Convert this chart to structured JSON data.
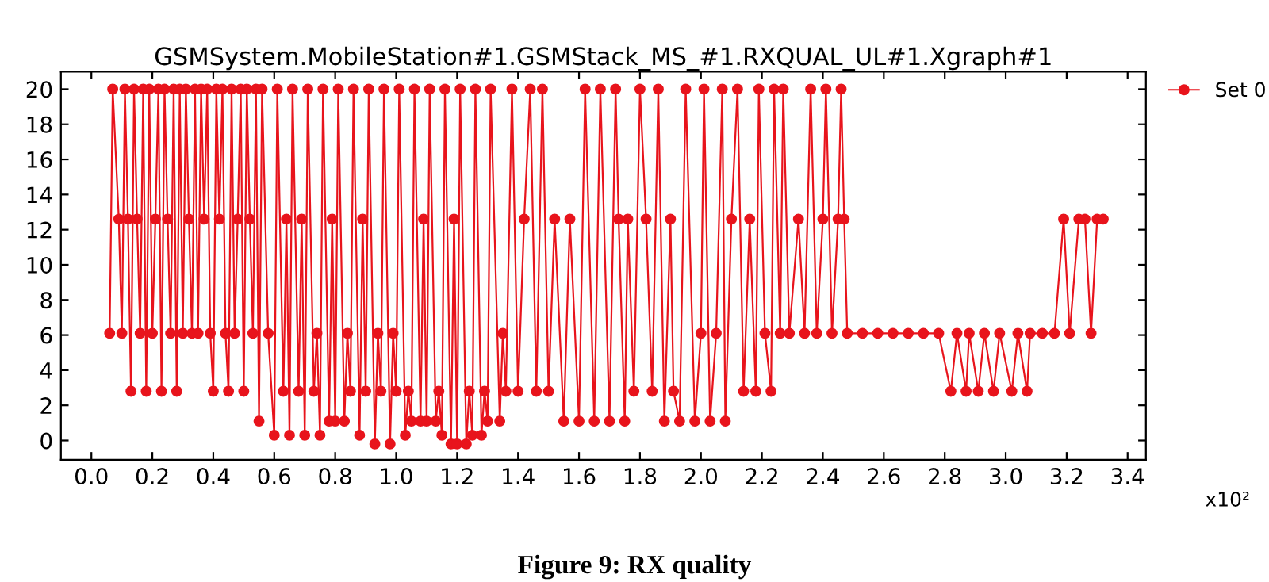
{
  "chart_data": {
    "type": "line",
    "title": "GSMSystem.MobileStation#1.GSMStack_MS_#1.RXQUAL_UL#1.Xgraph#1",
    "annotations": [
      "x10²",
      "Figure 9: RX quality"
    ],
    "series": [
      {
        "name": "Set 0",
        "color": "#e8141c",
        "x": [
          0.06,
          0.07,
          0.09,
          0.1,
          0.11,
          0.12,
          0.13,
          0.14,
          0.15,
          0.16,
          0.17,
          0.18,
          0.19,
          0.2,
          0.21,
          0.22,
          0.23,
          0.24,
          0.25,
          0.26,
          0.27,
          0.28,
          0.29,
          0.3,
          0.31,
          0.32,
          0.33,
          0.34,
          0.35,
          0.36,
          0.37,
          0.38,
          0.39,
          0.4,
          0.41,
          0.42,
          0.43,
          0.44,
          0.45,
          0.46,
          0.47,
          0.48,
          0.49,
          0.5,
          0.51,
          0.52,
          0.53,
          0.54,
          0.55,
          0.56,
          0.58,
          0.6,
          0.61,
          0.63,
          0.64,
          0.65,
          0.66,
          0.68,
          0.69,
          0.7,
          0.71,
          0.73,
          0.74,
          0.75,
          0.76,
          0.78,
          0.79,
          0.8,
          0.81,
          0.83,
          0.84,
          0.85,
          0.86,
          0.88,
          0.89,
          0.9,
          0.91,
          0.93,
          0.94,
          0.95,
          0.96,
          0.98,
          0.99,
          1.0,
          1.01,
          1.03,
          1.04,
          1.05,
          1.06,
          1.08,
          1.09,
          1.1,
          1.11,
          1.13,
          1.14,
          1.15,
          1.16,
          1.18,
          1.19,
          1.2,
          1.21,
          1.23,
          1.24,
          1.25,
          1.26,
          1.28,
          1.29,
          1.3,
          1.31,
          1.34,
          1.35,
          1.36,
          1.38,
          1.4,
          1.42,
          1.44,
          1.46,
          1.48,
          1.5,
          1.52,
          1.55,
          1.57,
          1.6,
          1.62,
          1.65,
          1.67,
          1.7,
          1.72,
          1.73,
          1.75,
          1.76,
          1.78,
          1.8,
          1.82,
          1.84,
          1.86,
          1.88,
          1.9,
          1.91,
          1.93,
          1.95,
          1.98,
          2.0,
          2.01,
          2.03,
          2.05,
          2.07,
          2.08,
          2.1,
          2.12,
          2.14,
          2.16,
          2.18,
          2.19,
          2.21,
          2.23,
          2.24,
          2.26,
          2.27,
          2.29,
          2.32,
          2.34,
          2.36,
          2.38,
          2.4,
          2.41,
          2.43,
          2.45,
          2.46,
          2.47,
          2.48,
          2.53,
          2.58,
          2.63,
          2.68,
          2.73,
          2.78,
          2.82,
          2.84,
          2.87,
          2.88,
          2.91,
          2.93,
          2.96,
          2.98,
          3.02,
          3.04,
          3.07,
          3.08,
          3.12,
          3.16,
          3.19,
          3.21,
          3.24,
          3.26,
          3.28,
          3.3,
          3.32
        ],
        "values": [
          6.1,
          20,
          12.6,
          6.1,
          20,
          12.6,
          2.8,
          20,
          12.6,
          6.1,
          20,
          2.8,
          20,
          6.1,
          12.6,
          20,
          2.8,
          20,
          12.6,
          6.1,
          20,
          2.8,
          20,
          6.1,
          20,
          12.6,
          6.1,
          20,
          6.1,
          20,
          12.6,
          20,
          6.1,
          2.8,
          20,
          12.6,
          20,
          6.1,
          2.8,
          20,
          6.1,
          12.6,
          20,
          2.8,
          20,
          12.6,
          6.1,
          20,
          1.1,
          20,
          6.1,
          0.3,
          20,
          2.8,
          12.6,
          0.3,
          20,
          2.8,
          12.6,
          0.3,
          20,
          2.8,
          6.1,
          0.3,
          20,
          1.1,
          12.6,
          1.1,
          20,
          1.1,
          6.1,
          2.8,
          20,
          0.3,
          12.6,
          2.8,
          20,
          -0.2,
          6.1,
          2.8,
          20,
          -0.2,
          6.1,
          2.8,
          20,
          0.3,
          2.8,
          1.1,
          20,
          1.1,
          12.6,
          1.1,
          20,
          1.1,
          2.8,
          0.3,
          20,
          -0.2,
          12.6,
          -0.2,
          20,
          -0.2,
          2.8,
          0.3,
          20,
          0.3,
          2.8,
          1.1,
          20,
          1.1,
          6.1,
          2.8,
          20,
          2.8,
          12.6,
          20,
          2.8,
          20,
          2.8,
          12.6,
          1.1,
          12.6,
          1.1,
          20,
          1.1,
          20,
          1.1,
          20,
          12.6,
          1.1,
          12.6,
          2.8,
          20,
          12.6,
          2.8,
          20,
          1.1,
          12.6,
          2.8,
          1.1,
          20,
          1.1,
          6.1,
          20,
          1.1,
          6.1,
          20,
          1.1,
          12.6,
          20,
          2.8,
          12.6,
          2.8,
          20,
          6.1,
          2.8,
          20,
          6.1,
          20,
          6.1,
          12.6,
          6.1,
          20,
          6.1,
          12.6,
          20,
          6.1,
          12.6,
          20,
          12.6,
          6.1,
          6.1,
          6.1,
          6.1,
          6.1,
          6.1,
          6.1,
          2.8,
          6.1,
          2.8,
          6.1,
          2.8,
          6.1,
          2.8,
          6.1,
          2.8,
          6.1,
          2.8,
          6.1,
          6.1,
          6.1,
          12.6,
          6.1,
          12.6,
          12.6,
          6.1,
          12.6,
          12.6
        ]
      }
    ],
    "xlim": [
      -0.1,
      3.46
    ],
    "xticks": [
      {
        "value": 0.0,
        "label": "0.0"
      },
      {
        "value": 0.2,
        "label": "0.2"
      },
      {
        "value": 0.4,
        "label": "0.4"
      },
      {
        "value": 0.6,
        "label": "0.6"
      },
      {
        "value": 0.8,
        "label": "0.8"
      },
      {
        "value": 1.0,
        "label": "1.0"
      },
      {
        "value": 1.2,
        "label": "1.2"
      },
      {
        "value": 1.4,
        "label": "1.4"
      },
      {
        "value": 1.6,
        "label": "1.6"
      },
      {
        "value": 1.8,
        "label": "1.8"
      },
      {
        "value": 2.0,
        "label": "2.0"
      },
      {
        "value": 2.2,
        "label": "2.2"
      },
      {
        "value": 2.4,
        "label": "2.4"
      },
      {
        "value": 2.6,
        "label": "2.6"
      },
      {
        "value": 2.8,
        "label": "2.8"
      },
      {
        "value": 3.0,
        "label": "3.0"
      },
      {
        "value": 3.2,
        "label": "3.2"
      },
      {
        "value": 3.4,
        "label": "3.4"
      }
    ],
    "ylim": [
      -1.1,
      21
    ],
    "yticks": [
      0,
      2,
      4,
      6,
      8,
      10,
      12,
      14,
      16,
      18,
      20
    ],
    "marker": "circle",
    "line_style": "solid",
    "grid": false,
    "legend": "top right"
  }
}
